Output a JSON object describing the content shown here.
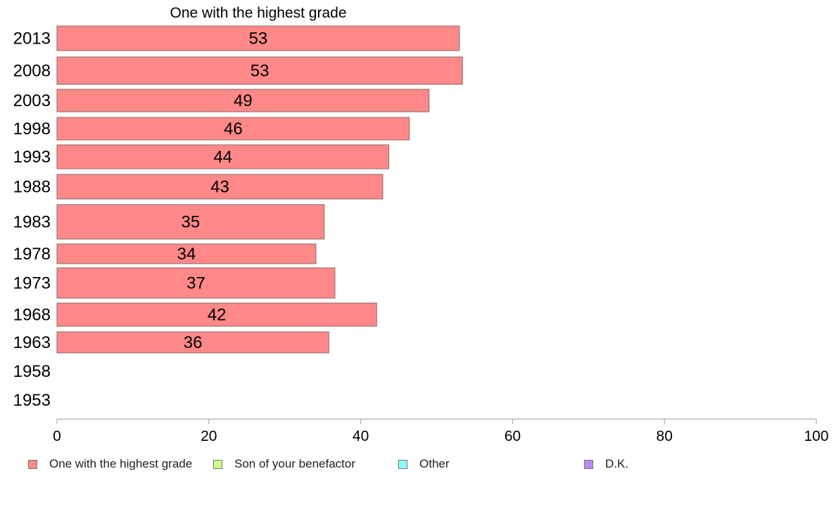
{
  "chart_data": {
    "type": "bar",
    "orientation": "horizontal",
    "title": "One with the highest grade",
    "categories": [
      "2013",
      "2008",
      "2003",
      "1998",
      "1993",
      "1988",
      "1983",
      "1978",
      "1973",
      "1968",
      "1963",
      "1958",
      "1953"
    ],
    "series": [
      {
        "name": "One with the highest grade",
        "color": "#ff8888",
        "values": [
          53,
          53.4,
          49,
          46.4,
          43.7,
          42.9,
          35.2,
          34.1,
          36.6,
          42.1,
          35.8,
          null,
          null
        ],
        "labels": [
          "53",
          "53",
          "49",
          "46",
          "44",
          "43",
          "35",
          "34",
          "37",
          "42",
          "36",
          "",
          ""
        ]
      }
    ],
    "xlim": [
      0,
      100
    ],
    "xticks": [
      "0",
      "20",
      "40",
      "60",
      "80",
      "100"
    ],
    "grid": false,
    "legend": {
      "placement": "bottom",
      "items": [
        {
          "label": "One with the highest grade",
          "color": "#ff8888"
        },
        {
          "label": "Son of your benefactor",
          "color": "#ccff88"
        },
        {
          "label": "Other",
          "color": "#88ffff"
        },
        {
          "label": "D.K.",
          "color": "#bb88ff"
        }
      ]
    }
  }
}
